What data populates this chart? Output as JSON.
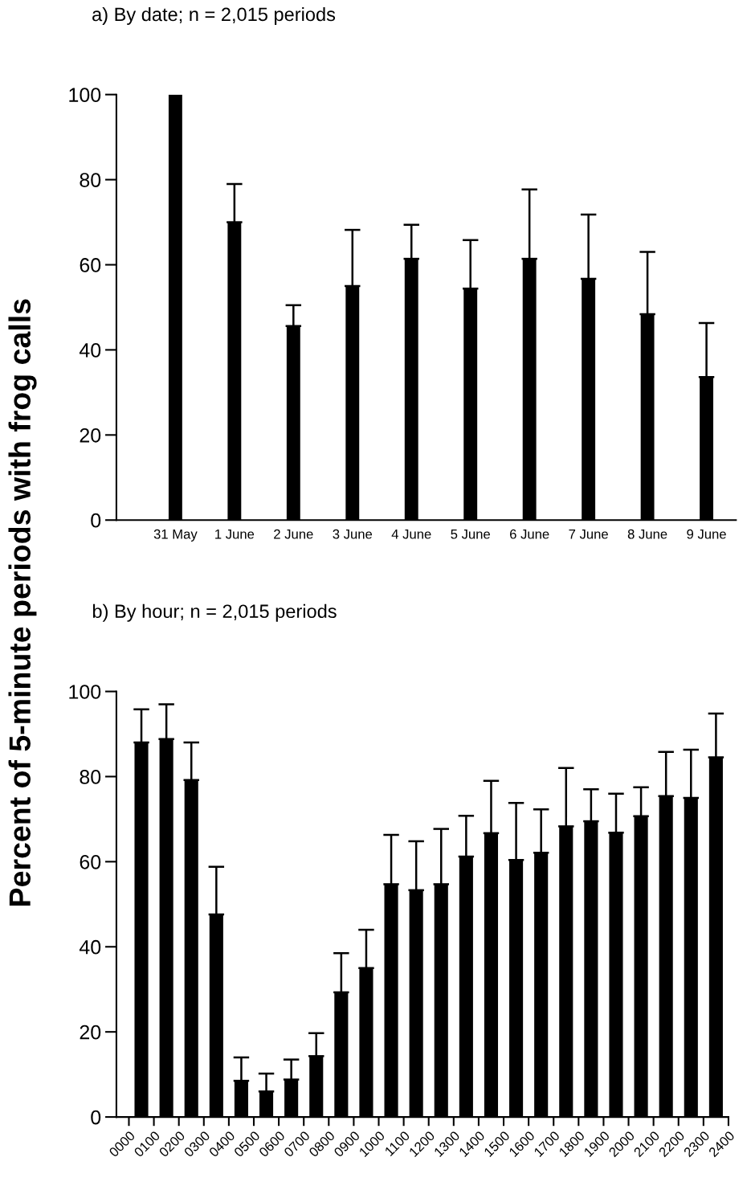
{
  "chart_data": [
    {
      "type": "bar",
      "title": "a) By date; n = 2,015 periods",
      "ylabel": "Percent of 5-minute periods with frog calls",
      "categories": [
        "31 May",
        "1 June",
        "2 June",
        "3 June",
        "4 June",
        "5 June",
        "6 June",
        "7 June",
        "8 June",
        "9 June"
      ],
      "series": [
        {
          "color": "#000000",
          "values": [
            100,
            70,
            45.6,
            55,
            61.4,
            54.4,
            61.4,
            56.7,
            48.4,
            33.6
          ],
          "errors": [
            null,
            [
              70,
              79
            ],
            [
              45.6,
              50.5
            ],
            [
              55,
              68.2
            ],
            [
              61.4,
              69.4
            ],
            [
              54.4,
              65.8
            ],
            [
              61.4,
              77.7
            ],
            [
              56.7,
              71.8
            ],
            [
              48.4,
              63
            ],
            [
              33.6,
              46.3
            ]
          ]
        }
      ],
      "ylim": [
        0,
        100
      ],
      "yticks": [
        0,
        20,
        40,
        60,
        80,
        100
      ],
      "grid": false,
      "legend": false
    },
    {
      "type": "bar",
      "title": "b) By hour; n = 2,015 periods",
      "x": [
        50,
        150,
        250,
        350,
        450,
        550,
        650,
        750,
        850,
        950,
        1050,
        1150,
        1250,
        1350,
        1450,
        1550,
        1650,
        1750,
        1850,
        1950,
        2050,
        2150,
        2250,
        2350
      ],
      "series": [
        {
          "color": "#000000",
          "values": [
            88,
            88.8,
            79.2,
            47.6,
            8.5,
            6,
            8.8,
            14.3,
            29.3,
            35,
            54.7,
            53.3,
            54.7,
            61.2,
            66.7,
            60.4,
            62.1,
            68.3,
            69.5,
            66.8,
            70.7,
            75.4,
            75,
            84.5
          ],
          "errors": [
            [
              88,
              95.8
            ],
            [
              88.8,
              97
            ],
            [
              79.2,
              88
            ],
            [
              47.6,
              58.8
            ],
            [
              8.5,
              14
            ],
            [
              6,
              10.2
            ],
            [
              8.8,
              13.5
            ],
            [
              14.3,
              19.7
            ],
            [
              29.3,
              38.5
            ],
            [
              35,
              44
            ],
            [
              54.7,
              66.3
            ],
            [
              53.3,
              64.8
            ],
            [
              54.7,
              67.7
            ],
            [
              61.2,
              70.8
            ],
            [
              66.7,
              79
            ],
            [
              60.4,
              73.8
            ],
            [
              62.1,
              72.3
            ],
            [
              68.3,
              82
            ],
            [
              69.5,
              77
            ],
            [
              66.8,
              76
            ],
            [
              70.7,
              77.5
            ],
            [
              75.4,
              85.8
            ],
            [
              75,
              86.3
            ],
            [
              84.5,
              94.8
            ]
          ]
        }
      ],
      "xlim": [
        -50,
        2400
      ],
      "xticks": [
        {
          "value": 0,
          "label": "0000"
        },
        {
          "value": 100,
          "label": "0100"
        },
        {
          "value": 200,
          "label": "0200"
        },
        {
          "value": 300,
          "label": "0300"
        },
        {
          "value": 400,
          "label": "0400"
        },
        {
          "value": 500,
          "label": "0500"
        },
        {
          "value": 600,
          "label": "0600"
        },
        {
          "value": 700,
          "label": "0700"
        },
        {
          "value": 800,
          "label": "0800"
        },
        {
          "value": 900,
          "label": "0900"
        },
        1000,
        1100,
        1200,
        1300,
        1400,
        1500,
        1600,
        1700,
        1800,
        1900,
        2000,
        2100,
        2200,
        2300,
        2400
      ],
      "ylim": [
        0,
        100
      ],
      "yticks": [
        0,
        20,
        40,
        60,
        80,
        100
      ],
      "grid": false,
      "legend": false
    }
  ]
}
